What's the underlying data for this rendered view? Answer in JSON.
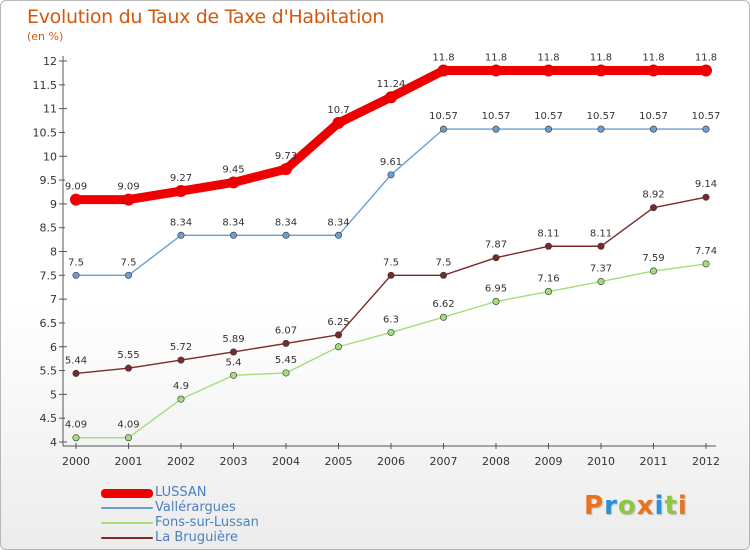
{
  "chart_data": {
    "type": "line",
    "title": "Evolution du Taux de Taxe d'Habitation",
    "subtitle": "(en %)",
    "xlabel": "",
    "ylabel": "",
    "x": [
      "2000",
      "2001",
      "2002",
      "2003",
      "2004",
      "2005",
      "2006",
      "2007",
      "2008",
      "2009",
      "2010",
      "2011",
      "2012"
    ],
    "ylim": [
      4,
      12
    ],
    "yticks": [
      "4",
      "4.5",
      "5",
      "5.5",
      "6",
      "6.5",
      "7",
      "7.5",
      "8",
      "8.5",
      "9",
      "9.5",
      "10",
      "10.5",
      "11",
      "11.5",
      "12"
    ],
    "grid": false,
    "legend_position": "bottom-left",
    "series": [
      {
        "name": "LUSSAN",
        "color": "#ee0000",
        "values": [
          9.09,
          9.09,
          9.27,
          9.45,
          9.73,
          10.7,
          11.24,
          11.8,
          11.8,
          11.8,
          11.8,
          11.8,
          11.8
        ],
        "labels": [
          "9.09",
          "9.09",
          "9.27",
          "9.45",
          "9.73",
          "10.7",
          "11.24",
          "11.8",
          "11.8",
          "11.8",
          "11.8",
          "11.8",
          "11.8"
        ]
      },
      {
        "name": "Vallérargues",
        "color": "#6a9fd0",
        "values": [
          7.5,
          7.5,
          8.34,
          8.34,
          8.34,
          8.34,
          9.61,
          10.57,
          10.57,
          10.57,
          10.57,
          10.57,
          10.57
        ],
        "labels": [
          "7.5",
          "7.5",
          "8.34",
          "8.34",
          "8.34",
          "8.34",
          "9.61",
          "10.57",
          "10.57",
          "10.57",
          "10.57",
          "10.57",
          "10.57"
        ]
      },
      {
        "name": "Fons-sur-Lussan",
        "color": "#a4dd7a",
        "values": [
          4.09,
          4.09,
          4.9,
          5.4,
          5.45,
          6.0,
          6.3,
          6.62,
          6.95,
          7.16,
          7.37,
          7.59,
          7.74
        ],
        "labels": [
          "4.09",
          "4.09",
          "4.9",
          "5.4",
          "5.45",
          "",
          "6.3",
          "6.62",
          "6.95",
          "7.16",
          "7.37",
          "7.59",
          "7.74"
        ]
      },
      {
        "name": "La Bruguière",
        "color": "#7a2a2a",
        "values": [
          5.44,
          5.55,
          5.72,
          5.89,
          6.07,
          6.25,
          7.5,
          7.5,
          7.87,
          8.11,
          8.11,
          8.92,
          9.14
        ],
        "labels": [
          "5.44",
          "5.55",
          "5.72",
          "5.89",
          "6.07",
          "6.25",
          "7.5",
          "7.5",
          "7.87",
          "8.11",
          "8.11",
          "8.92",
          "9.14"
        ]
      }
    ],
    "logo_text": "Proxiti"
  }
}
